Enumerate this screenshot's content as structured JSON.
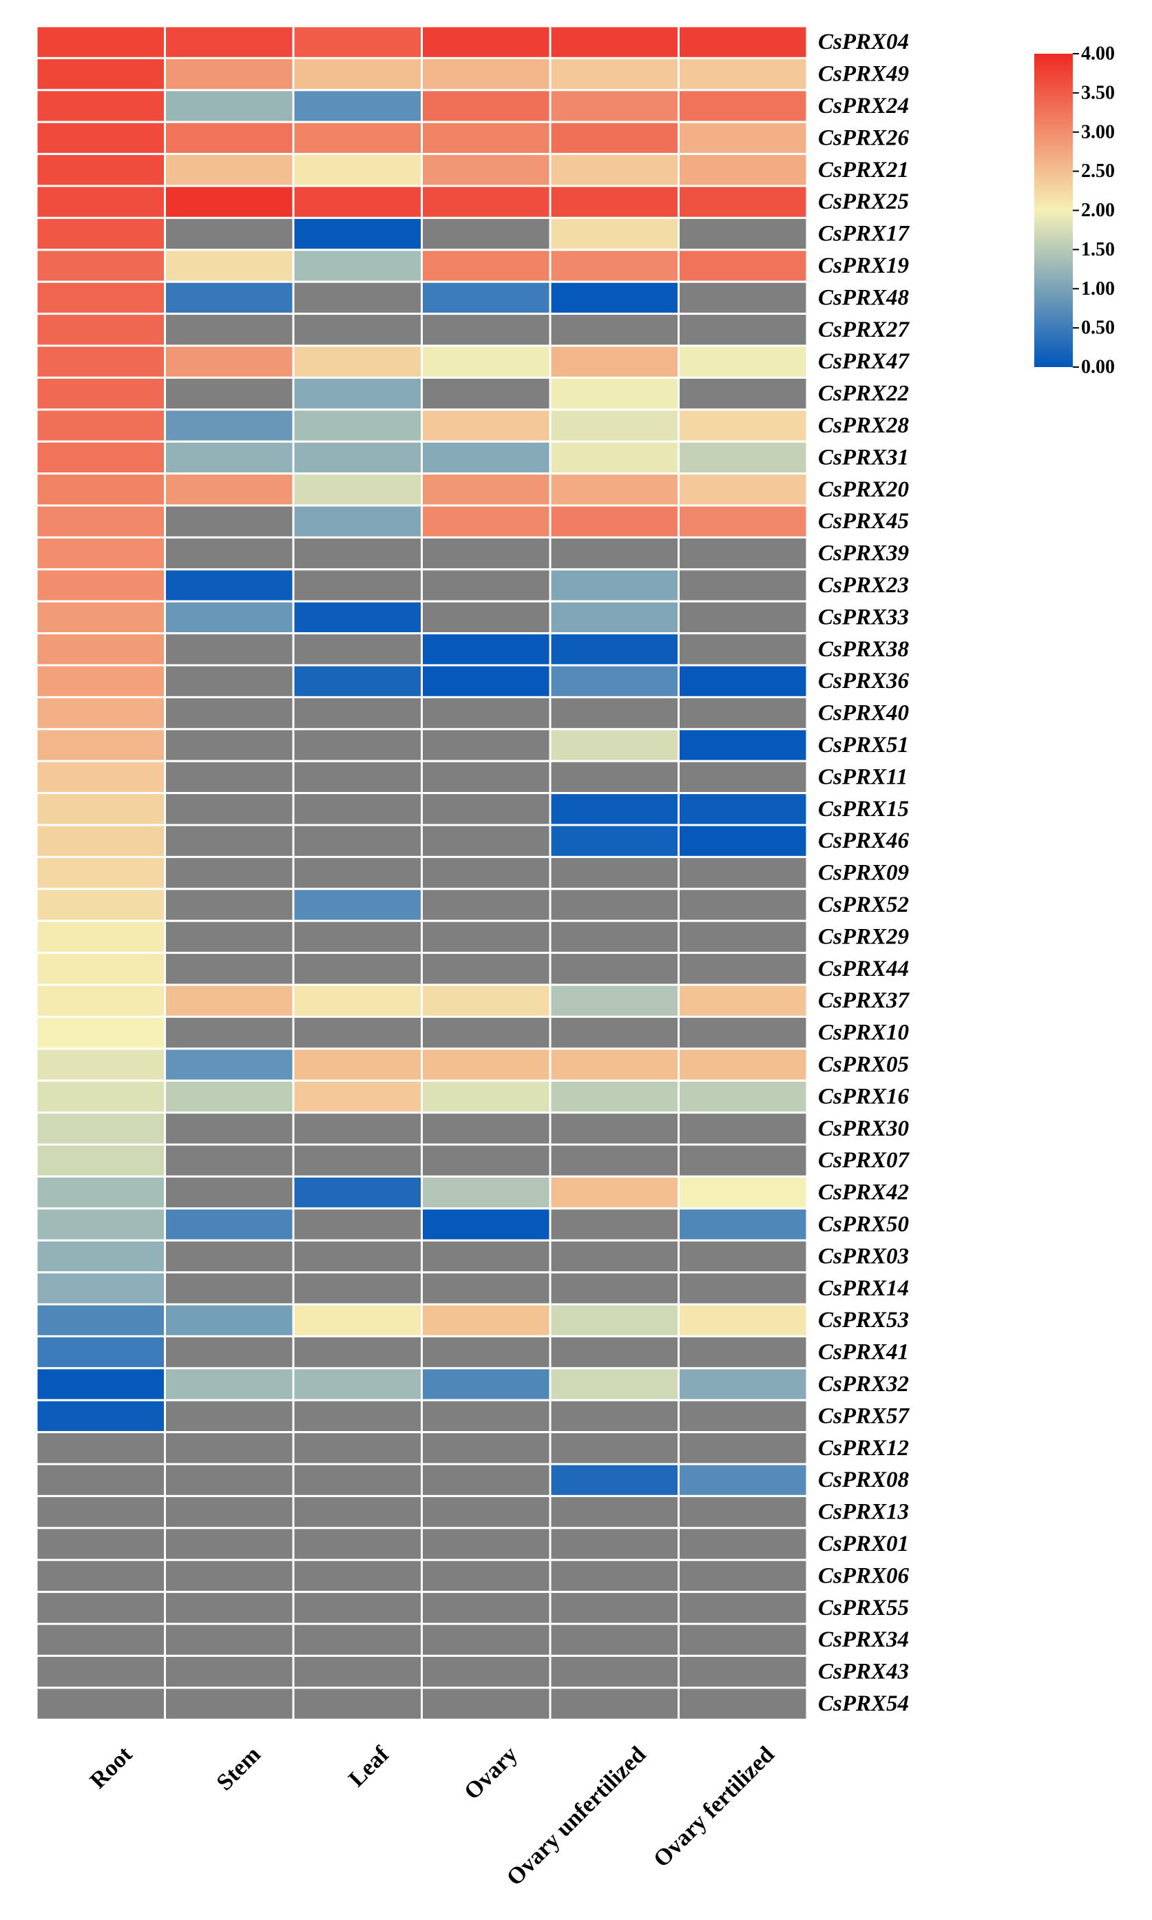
{
  "chart_data": {
    "type": "heatmap",
    "columns": [
      "Root",
      "Stem",
      "Leaf",
      "Ovary",
      "Ovary unfertilized",
      "Ovary fertilized"
    ],
    "rows": [
      "CsPRX04",
      "CsPRX49",
      "CsPRX24",
      "CsPRX26",
      "CsPRX21",
      "CsPRX25",
      "CsPRX17",
      "CsPRX19",
      "CsPRX48",
      "CsPRX27",
      "CsPRX47",
      "CsPRX22",
      "CsPRX28",
      "CsPRX31",
      "CsPRX20",
      "CsPRX45",
      "CsPRX39",
      "CsPRX23",
      "CsPRX33",
      "CsPRX38",
      "CsPRX36",
      "CsPRX40",
      "CsPRX51",
      "CsPRX11",
      "CsPRX15",
      "CsPRX46",
      "CsPRX09",
      "CsPRX52",
      "CsPRX29",
      "CsPRX44",
      "CsPRX37",
      "CsPRX10",
      "CsPRX05",
      "CsPRX16",
      "CsPRX30",
      "CsPRX07",
      "CsPRX42",
      "CsPRX50",
      "CsPRX03",
      "CsPRX14",
      "CsPRX53",
      "CsPRX41",
      "CsPRX32",
      "CsPRX57",
      "CsPRX12",
      "CsPRX08",
      "CsPRX13",
      "CsPRX01",
      "CsPRX06",
      "CsPRX55",
      "CsPRX34",
      "CsPRX43",
      "CsPRX54"
    ],
    "values": [
      [
        3.75,
        3.7,
        3.5,
        3.8,
        3.8,
        3.8
      ],
      [
        3.72,
        2.9,
        2.5,
        2.6,
        2.4,
        2.4
      ],
      [
        3.68,
        1.25,
        0.75,
        3.3,
        3.05,
        3.25
      ],
      [
        3.68,
        3.25,
        3.1,
        3.1,
        3.3,
        2.65
      ],
      [
        3.66,
        2.5,
        2.1,
        2.9,
        2.4,
        2.7
      ],
      [
        3.65,
        3.9,
        3.7,
        3.65,
        3.65,
        3.6
      ],
      [
        3.55,
        null,
        0.05,
        null,
        2.2,
        null
      ],
      [
        3.35,
        2.2,
        1.35,
        3.1,
        3.05,
        3.25
      ],
      [
        3.4,
        0.45,
        null,
        0.5,
        0.05,
        null
      ],
      [
        3.38,
        null,
        null,
        null,
        null,
        null
      ],
      [
        3.35,
        2.9,
        2.3,
        1.95,
        2.6,
        1.95
      ],
      [
        3.35,
        null,
        1.1,
        null,
        1.95,
        null
      ],
      [
        3.3,
        0.85,
        1.35,
        2.4,
        1.85,
        2.25
      ],
      [
        3.25,
        1.2,
        1.2,
        1.1,
        1.9,
        1.6
      ],
      [
        3.1,
        2.9,
        1.75,
        2.9,
        2.7,
        2.4
      ],
      [
        3.05,
        null,
        1.05,
        3.05,
        3.15,
        3.05
      ],
      [
        3.0,
        null,
        null,
        null,
        null,
        null
      ],
      [
        3.0,
        0.1,
        null,
        null,
        1.05,
        null
      ],
      [
        2.85,
        0.85,
        0.1,
        null,
        1.05,
        null
      ],
      [
        2.85,
        null,
        null,
        0.05,
        0.1,
        null
      ],
      [
        2.8,
        null,
        0.2,
        0.05,
        0.7,
        0.05
      ],
      [
        2.65,
        null,
        null,
        null,
        null,
        null
      ],
      [
        2.6,
        null,
        null,
        null,
        1.75,
        0.05
      ],
      [
        2.4,
        null,
        null,
        null,
        null,
        null
      ],
      [
        2.3,
        null,
        null,
        null,
        0.1,
        0.1
      ],
      [
        2.3,
        null,
        null,
        null,
        0.15,
        0.05
      ],
      [
        2.25,
        null,
        null,
        null,
        null,
        null
      ],
      [
        2.2,
        null,
        0.7,
        null,
        null,
        null
      ],
      [
        2.05,
        null,
        null,
        null,
        null,
        null
      ],
      [
        2.05,
        null,
        null,
        null,
        null,
        null
      ],
      [
        2.05,
        2.5,
        2.1,
        2.2,
        1.45,
        2.45
      ],
      [
        2.0,
        null,
        null,
        null,
        null,
        null
      ],
      [
        1.85,
        0.8,
        2.5,
        2.5,
        2.5,
        2.5
      ],
      [
        1.8,
        1.55,
        2.4,
        1.8,
        1.55,
        1.55
      ],
      [
        1.7,
        null,
        null,
        null,
        null,
        null
      ],
      [
        1.7,
        null,
        null,
        null,
        null,
        null
      ],
      [
        1.35,
        null,
        0.25,
        1.45,
        2.5,
        2.0
      ],
      [
        1.3,
        0.6,
        null,
        0.05,
        null,
        0.65
      ],
      [
        1.2,
        null,
        null,
        null,
        null,
        null
      ],
      [
        1.15,
        null,
        null,
        null,
        null,
        null
      ],
      [
        0.65,
        0.95,
        2.05,
        2.45,
        1.7,
        2.1
      ],
      [
        0.5,
        null,
        null,
        null,
        null,
        null
      ],
      [
        0.05,
        1.3,
        1.3,
        0.65,
        1.7,
        1.1
      ],
      [
        0.1,
        null,
        null,
        null,
        null,
        null
      ],
      [
        null,
        null,
        null,
        null,
        null,
        null
      ],
      [
        null,
        null,
        null,
        null,
        0.25,
        0.7
      ],
      [
        null,
        null,
        null,
        null,
        null,
        null
      ],
      [
        null,
        null,
        null,
        null,
        null,
        null
      ],
      [
        null,
        null,
        null,
        null,
        null,
        null
      ],
      [
        null,
        null,
        null,
        null,
        null,
        null
      ],
      [
        null,
        null,
        null,
        null,
        null,
        null
      ],
      [
        null,
        null,
        null,
        null,
        null,
        null
      ],
      [
        null,
        null,
        null,
        null,
        null,
        null
      ]
    ],
    "color_scale": {
      "min": 0.0,
      "max": 4.0,
      "low_color": "#0055BB",
      "mid_color": "#F5F0B5",
      "high_color": "#EE2A24",
      "missing_color": "#7F7F7F",
      "gridline_color": "#FFFFFF",
      "ticks": [
        "4.00",
        "3.50",
        "3.00",
        "2.50",
        "2.00",
        "1.50",
        "1.00",
        "0.50",
        "0.00"
      ]
    },
    "legend": "top-right"
  }
}
